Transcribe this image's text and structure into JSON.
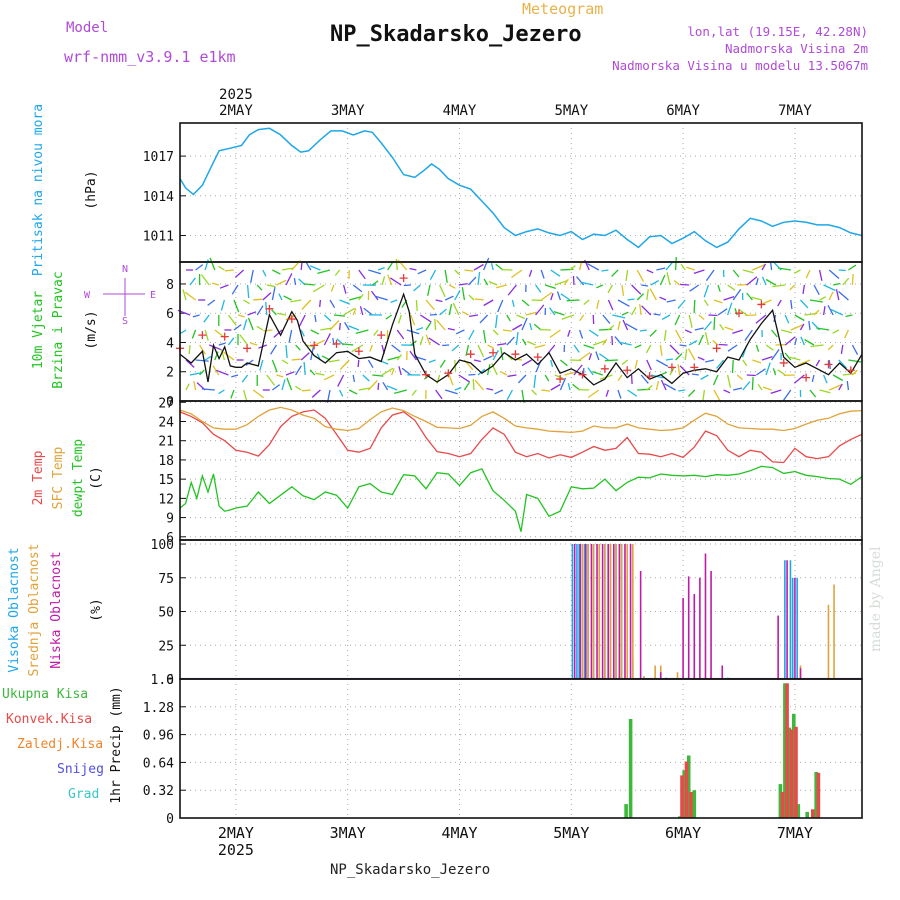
{
  "header": {
    "model_label": "Model",
    "model_name": "wrf-nmm_v3.9.1 e1km",
    "subtitle": "Meteogram",
    "station": "NP_Skadarsko_Jezero",
    "location_lines": [
      "lon,lat (19.15E, 42.28N)",
      "Nadmorska Visina 2m",
      "Nadmorska Visina u modelu 13.5067m"
    ],
    "footer_station": "NP_Skadarsko_Jezero",
    "credit": "made by Angel"
  },
  "colors": {
    "pressure": "#1ea6e8",
    "wind": "#111111",
    "gust": "#e33b3b",
    "temp2m": "#e84a4a",
    "sfc": "#e0a23a",
    "dewpt": "#22c322",
    "high_cloud": "#1ea6e8",
    "mid_cloud": "#e0a23a",
    "low_cloud": "#c01aa8",
    "total_precip": "#3cb83c",
    "conv_precip": "#e84a4a",
    "ice": "#f0842a",
    "snow": "#5050e0",
    "hail": "#38c8c8"
  },
  "chart_data": [
    {
      "type": "line",
      "panel": "pressure",
      "ylabel_lines": [
        "Pritisak na nivou mora",
        "(hPa)"
      ],
      "yticks": [
        1011,
        1014,
        1017
      ],
      "ylim": [
        1009,
        1019.5
      ],
      "xlim": [
        0,
        6.1
      ],
      "top_axis": {
        "year": "2025",
        "labels": [
          "2MAY",
          "3MAY",
          "4MAY",
          "5MAY",
          "6MAY",
          "7MAY"
        ],
        "positions": [
          0.5,
          1.5,
          2.5,
          3.5,
          4.5,
          5.5
        ]
      },
      "x": [
        0,
        0.05,
        0.12,
        0.2,
        0.28,
        0.35,
        0.45,
        0.55,
        0.62,
        0.7,
        0.8,
        0.9,
        1.0,
        1.08,
        1.15,
        1.25,
        1.35,
        1.45,
        1.55,
        1.65,
        1.72,
        1.8,
        1.9,
        2.0,
        2.1,
        2.18,
        2.25,
        2.32,
        2.4,
        2.5,
        2.6,
        2.7,
        2.8,
        2.9,
        3.0,
        3.1,
        3.2,
        3.3,
        3.4,
        3.5,
        3.6,
        3.7,
        3.8,
        3.9,
        4.0,
        4.1,
        4.2,
        4.3,
        4.4,
        4.5,
        4.6,
        4.7,
        4.8,
        4.9,
        5.0,
        5.1,
        5.2,
        5.3,
        5.4,
        5.5,
        5.6,
        5.7,
        5.8,
        5.9,
        6.0,
        6.1
      ],
      "y": [
        1015.3,
        1014.6,
        1014.1,
        1014.8,
        1016.2,
        1017.4,
        1017.6,
        1017.8,
        1018.6,
        1019.0,
        1019.1,
        1018.6,
        1017.8,
        1017.3,
        1017.4,
        1018.2,
        1018.9,
        1018.9,
        1018.6,
        1018.9,
        1018.8,
        1018.0,
        1016.9,
        1015.6,
        1015.4,
        1015.9,
        1016.4,
        1016.0,
        1015.3,
        1014.8,
        1014.5,
        1013.6,
        1012.7,
        1011.6,
        1011.0,
        1011.3,
        1011.5,
        1011.2,
        1011.0,
        1011.3,
        1010.7,
        1011.1,
        1011.0,
        1011.4,
        1010.7,
        1010.1,
        1010.9,
        1011.0,
        1010.4,
        1010.8,
        1011.3,
        1010.6,
        1010.1,
        1010.5,
        1011.5,
        1012.3,
        1012.1,
        1011.7,
        1012.0,
        1012.1,
        1012.0,
        1011.8,
        1011.8,
        1011.6,
        1011.2,
        1011.0
      ]
    },
    {
      "type": "line",
      "panel": "wind",
      "ylabel_lines": [
        "10m Vjetar",
        "Brzina i Pravac",
        "(m/s)"
      ],
      "compass": {
        "n": "N",
        "s": "S",
        "e": "E",
        "w": "W"
      },
      "yticks": [
        0,
        2,
        4,
        6,
        8
      ],
      "ylim": [
        0,
        9.5
      ],
      "xlim": [
        0,
        6.1
      ],
      "wind_speed": {
        "x": [
          0,
          0.1,
          0.2,
          0.25,
          0.3,
          0.35,
          0.4,
          0.45,
          0.5,
          0.55,
          0.6,
          0.7,
          0.8,
          0.9,
          1.0,
          1.05,
          1.1,
          1.2,
          1.3,
          1.4,
          1.5,
          1.6,
          1.7,
          1.8,
          1.9,
          2.0,
          2.05,
          2.1,
          2.2,
          2.3,
          2.4,
          2.5,
          2.6,
          2.7,
          2.8,
          2.9,
          3.0,
          3.1,
          3.2,
          3.3,
          3.4,
          3.5,
          3.6,
          3.7,
          3.8,
          3.9,
          4.0,
          4.1,
          4.2,
          4.3,
          4.4,
          4.5,
          4.6,
          4.7,
          4.8,
          4.9,
          5.0,
          5.1,
          5.2,
          5.3,
          5.4,
          5.5,
          5.6,
          5.7,
          5.8,
          5.9,
          6.0,
          6.1
        ],
        "y": [
          3.2,
          2.6,
          3.4,
          1.3,
          3.8,
          2.9,
          3.7,
          2.4,
          2.3,
          2.3,
          2.6,
          2.4,
          5.9,
          4.5,
          6.1,
          5.5,
          4.1,
          3.1,
          2.6,
          3.3,
          3.4,
          2.9,
          3.0,
          2.7,
          5.2,
          7.3,
          6.1,
          3.2,
          1.8,
          1.3,
          1.8,
          2.8,
          2.6,
          1.9,
          2.4,
          3.3,
          2.8,
          3.2,
          2.5,
          3.3,
          1.9,
          2.2,
          1.8,
          1.1,
          1.5,
          2.6,
          1.6,
          2.2,
          1.5,
          1.8,
          1.2,
          1.9,
          2.1,
          2.2,
          2.0,
          3.0,
          2.8,
          4.2,
          5.3,
          6.2,
          3.0,
          2.3,
          2.6,
          2.2,
          1.8,
          2.6,
          1.9,
          3.2
        ]
      },
      "gusts": {
        "x": [
          0,
          0.2,
          0.4,
          0.6,
          0.8,
          1.0,
          1.2,
          1.4,
          1.6,
          1.8,
          2.0,
          2.2,
          2.4,
          2.6,
          2.8,
          3.0,
          3.2,
          3.4,
          3.6,
          3.8,
          4.0,
          4.2,
          4.4,
          4.6,
          4.8,
          5.0,
          5.2,
          5.4,
          5.6,
          5.8,
          6.0
        ],
        "y": [
          3.6,
          4.5,
          4.4,
          3.6,
          6.3,
          5.6,
          3.8,
          3.9,
          3.4,
          4.5,
          8.4,
          1.8,
          1.9,
          3.2,
          3.3,
          3.2,
          3.0,
          1.5,
          1.8,
          2.2,
          2.1,
          1.7,
          2.3,
          2.3,
          3.6,
          6.0,
          6.6,
          2.6,
          1.6,
          2.5,
          2.1
        ]
      }
    },
    {
      "type": "line",
      "panel": "temperature",
      "ylabel_lines": [
        "2m Temp",
        "SFC Temp",
        "dewpt Temp",
        "(C)"
      ],
      "yticks": [
        6,
        9,
        12,
        15,
        18,
        21,
        24,
        27
      ],
      "ylim": [
        5.5,
        27.2
      ],
      "xlim": [
        0,
        6.1
      ],
      "series": [
        {
          "name": "2m Temp",
          "x": [
            0,
            0.1,
            0.2,
            0.3,
            0.4,
            0.5,
            0.6,
            0.7,
            0.8,
            0.9,
            1.0,
            1.1,
            1.2,
            1.3,
            1.4,
            1.5,
            1.6,
            1.7,
            1.8,
            1.9,
            2.0,
            2.1,
            2.2,
            2.3,
            2.4,
            2.5,
            2.6,
            2.7,
            2.8,
            2.9,
            3.0,
            3.1,
            3.2,
            3.3,
            3.4,
            3.5,
            3.6,
            3.7,
            3.8,
            3.9,
            4.0,
            4.1,
            4.2,
            4.3,
            4.4,
            4.5,
            4.6,
            4.7,
            4.8,
            4.9,
            5.0,
            5.1,
            5.2,
            5.3,
            5.4,
            5.5,
            5.6,
            5.7,
            5.8,
            5.9,
            6.0,
            6.1
          ],
          "y": [
            25.5,
            24.8,
            23.8,
            22.0,
            21.0,
            19.5,
            19.2,
            18.6,
            20.4,
            23.2,
            24.8,
            25.5,
            25.8,
            24.5,
            22.0,
            19.5,
            19.2,
            19.8,
            23.0,
            25.0,
            25.5,
            24.2,
            21.5,
            19.3,
            19.0,
            18.5,
            19.0,
            21.2,
            23.0,
            22.0,
            19.2,
            18.5,
            19.0,
            18.3,
            18.8,
            18.4,
            19.2,
            20.1,
            19.5,
            19.8,
            21.5,
            19.0,
            18.9,
            18.5,
            19.0,
            18.4,
            20.0,
            22.5,
            21.8,
            19.5,
            18.5,
            19.5,
            19.2,
            17.7,
            17.6,
            19.8,
            18.5,
            18.2,
            18.5,
            20.2,
            21.2,
            22.0
          ]
        },
        {
          "name": "SFC Temp",
          "x": [
            0,
            0.1,
            0.2,
            0.3,
            0.4,
            0.5,
            0.6,
            0.7,
            0.8,
            0.9,
            1.0,
            1.1,
            1.2,
            1.3,
            1.4,
            1.5,
            1.6,
            1.7,
            1.8,
            1.9,
            2.0,
            2.1,
            2.2,
            2.3,
            2.4,
            2.5,
            2.6,
            2.7,
            2.8,
            2.9,
            3.0,
            3.1,
            3.2,
            3.3,
            3.4,
            3.5,
            3.6,
            3.7,
            3.8,
            3.9,
            4.0,
            4.1,
            4.2,
            4.3,
            4.4,
            4.5,
            4.6,
            4.7,
            4.8,
            4.9,
            5.0,
            5.1,
            5.2,
            5.3,
            5.4,
            5.5,
            5.6,
            5.7,
            5.8,
            5.9,
            6.0,
            6.1
          ],
          "y": [
            25.8,
            25.2,
            24.0,
            23.0,
            22.8,
            22.8,
            23.5,
            24.8,
            25.8,
            26.2,
            25.8,
            25.0,
            24.5,
            23.2,
            22.8,
            22.6,
            22.9,
            24.3,
            25.5,
            26.1,
            25.7,
            24.8,
            24.0,
            23.1,
            23.0,
            22.9,
            23.4,
            24.8,
            25.5,
            24.5,
            23.3,
            23.0,
            22.8,
            22.5,
            22.4,
            22.3,
            22.5,
            23.3,
            23.0,
            23.0,
            23.6,
            23.0,
            22.8,
            22.6,
            22.7,
            23.0,
            24.2,
            25.3,
            24.8,
            23.6,
            23.0,
            22.9,
            22.8,
            22.8,
            22.6,
            22.9,
            23.6,
            24.2,
            24.5,
            25.2,
            25.6,
            25.7
          ]
        },
        {
          "name": "dewpt Temp",
          "x": [
            0,
            0.05,
            0.1,
            0.15,
            0.2,
            0.25,
            0.3,
            0.35,
            0.4,
            0.45,
            0.5,
            0.6,
            0.7,
            0.8,
            0.9,
            1.0,
            1.1,
            1.2,
            1.3,
            1.4,
            1.5,
            1.6,
            1.7,
            1.8,
            1.9,
            2.0,
            2.1,
            2.2,
            2.3,
            2.4,
            2.5,
            2.6,
            2.7,
            2.8,
            2.9,
            3.0,
            3.05,
            3.1,
            3.2,
            3.3,
            3.4,
            3.5,
            3.6,
            3.7,
            3.8,
            3.9,
            4.0,
            4.1,
            4.2,
            4.3,
            4.4,
            4.5,
            4.6,
            4.7,
            4.8,
            4.9,
            5.0,
            5.1,
            5.2,
            5.3,
            5.4,
            5.5,
            5.6,
            5.7,
            5.8,
            5.9,
            6.0,
            6.1
          ],
          "y": [
            10.5,
            11.2,
            14.5,
            12.0,
            15.5,
            13.0,
            15.8,
            10.8,
            10.0,
            10.2,
            10.5,
            10.8,
            13.0,
            11.2,
            12.5,
            13.8,
            12.4,
            11.8,
            13.0,
            12.5,
            10.5,
            13.8,
            14.3,
            13.0,
            12.6,
            15.7,
            15.5,
            13.5,
            16.0,
            15.8,
            14.0,
            16.0,
            16.6,
            13.2,
            11.7,
            10.0,
            6.8,
            12.6,
            12.0,
            9.2,
            10.0,
            13.8,
            13.5,
            13.6,
            15.0,
            13.2,
            14.5,
            15.3,
            15.2,
            15.8,
            15.6,
            15.5,
            15.6,
            15.4,
            15.7,
            15.6,
            15.8,
            16.3,
            17.0,
            16.8,
            15.9,
            16.2,
            15.6,
            15.4,
            15.1,
            15.0,
            14.2,
            15.4
          ]
        }
      ]
    },
    {
      "type": "bar",
      "panel": "cloud",
      "ylabel_lines": [
        "Visoka Oblacnost",
        "Srednja Oblacnost",
        "Niska Oblacnost",
        "(%)"
      ],
      "yticks": [
        0,
        25,
        50,
        75,
        100
      ],
      "ylim": [
        0,
        103
      ],
      "xlim": [
        0,
        6.1
      ],
      "series": [
        {
          "name": "Visoka Oblacnost",
          "x": [
            3.51,
            3.55,
            3.57,
            3.6,
            3.62,
            3.65,
            3.7,
            3.75,
            3.8,
            3.85,
            3.9,
            3.95,
            4.05,
            4.15,
            4.25,
            4.35,
            4.45,
            4.55,
            4.9,
            5.41,
            5.46,
            5.48,
            5.52
          ],
          "values": [
            100,
            100,
            100,
            100,
            100,
            100,
            100,
            100,
            100,
            100,
            100,
            100,
            15,
            2,
            1,
            1,
            1,
            2,
            1,
            88,
            88,
            75,
            75
          ]
        },
        {
          "name": "Srednja Oblacnost",
          "x": [
            3.6,
            3.65,
            3.7,
            3.75,
            3.8,
            3.85,
            3.9,
            3.95,
            4.0,
            4.05,
            4.15,
            4.25,
            4.3,
            4.45,
            5.55,
            5.8,
            5.85
          ],
          "values": [
            100,
            100,
            100,
            100,
            100,
            100,
            100,
            100,
            100,
            100,
            2,
            10,
            10,
            5,
            10,
            55,
            70
          ]
        },
        {
          "name": "Niska Oblacnost",
          "x": [
            3.53,
            3.58,
            3.63,
            3.68,
            3.73,
            3.78,
            3.83,
            3.88,
            3.93,
            3.98,
            4.03,
            4.12,
            4.3,
            4.5,
            4.55,
            4.6,
            4.65,
            4.7,
            4.75,
            4.85,
            5.35,
            5.43,
            5.5,
            5.55
          ],
          "values": [
            100,
            100,
            100,
            100,
            100,
            100,
            100,
            100,
            100,
            100,
            100,
            80,
            5,
            60,
            76,
            63,
            75,
            93,
            80,
            10,
            47,
            88,
            75,
            8
          ]
        }
      ]
    },
    {
      "type": "bar",
      "panel": "precipitation",
      "ylabel_lines": [
        "Ukupna Kisa",
        "Konvek.Kisa",
        "Zaledj.Kisa",
        "Snijeg",
        "Grad",
        "1hr Precip (mm)"
      ],
      "yticks": [
        0,
        0.32,
        0.64,
        0.96,
        1.28,
        1.6
      ],
      "ylim": [
        0,
        1.6
      ],
      "xlim": [
        0,
        6.1
      ],
      "bottom_axis": {
        "year": "2025",
        "labels": [
          "2MAY",
          "3MAY",
          "4MAY",
          "5MAY",
          "6MAY",
          "7MAY"
        ],
        "positions": [
          0.5,
          1.5,
          2.5,
          3.5,
          4.5,
          5.5
        ]
      },
      "series": [
        {
          "name": "Ukupna Kisa",
          "x": [
            3.99,
            4.03,
            4.47,
            4.51,
            4.55,
            4.6,
            5.37,
            5.41,
            5.45,
            5.49,
            5.53,
            5.61,
            5.69
          ],
          "values": [
            0.16,
            1.14,
            0.02,
            0.55,
            0.72,
            0.32,
            0.39,
            1.55,
            1.04,
            1.2,
            0.16,
            0.07,
            0.53
          ]
        },
        {
          "name": "Konvek.Kisa",
          "x": [
            4.49,
            4.53,
            4.57,
            5.39,
            5.43,
            5.47,
            5.51,
            5.66,
            5.71
          ],
          "values": [
            0.49,
            0.65,
            0.3,
            0.3,
            1.55,
            1.02,
            1.05,
            0.1,
            0.52
          ]
        },
        {
          "name": "Zaledj.Kisa",
          "x": [],
          "values": []
        },
        {
          "name": "Snijeg",
          "x": [],
          "values": []
        },
        {
          "name": "Grad",
          "x": [],
          "values": []
        }
      ]
    }
  ]
}
